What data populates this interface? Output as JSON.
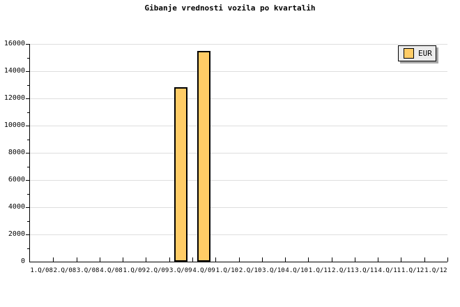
{
  "title": "Gibanje vrednosti vozila po kvartalih",
  "legend": {
    "label": "EUR"
  },
  "chart_data": {
    "type": "bar",
    "title": "Gibanje vrednosti vozila po kvartalih",
    "categories": [
      "1.Q/08",
      "2.Q/08",
      "3.Q/08",
      "4.Q/08",
      "1.Q/09",
      "2.Q/09",
      "3.Q/09",
      "4.Q/09",
      "1.Q/10",
      "2.Q/10",
      "3.Q/10",
      "4.Q/10",
      "1.Q/11",
      "2.Q/11",
      "3.Q/11",
      "4.Q/11",
      "1.Q/12",
      "1.Q/12"
    ],
    "series": [
      {
        "name": "EUR",
        "values": [
          null,
          null,
          null,
          null,
          null,
          null,
          12800,
          15500,
          null,
          null,
          null,
          null,
          null,
          null,
          null,
          null,
          null,
          null
        ]
      }
    ],
    "xlabel": "",
    "ylabel": "",
    "ylim": [
      0,
      16000
    ],
    "ytick_step": 2000,
    "y_minor_step": 1000,
    "grid": "horizontal",
    "legend_position": "top-right",
    "colors": {
      "bar_fill": "#FFCC66",
      "bar_border": "#000000",
      "grid": "#DEDEDE",
      "axis": "#000000",
      "text": "#000000",
      "legend_bg": "#ECECEC",
      "legend_border": "#000000",
      "legend_shadow": "#A8A8A8",
      "background": "#FFFFFF"
    }
  }
}
